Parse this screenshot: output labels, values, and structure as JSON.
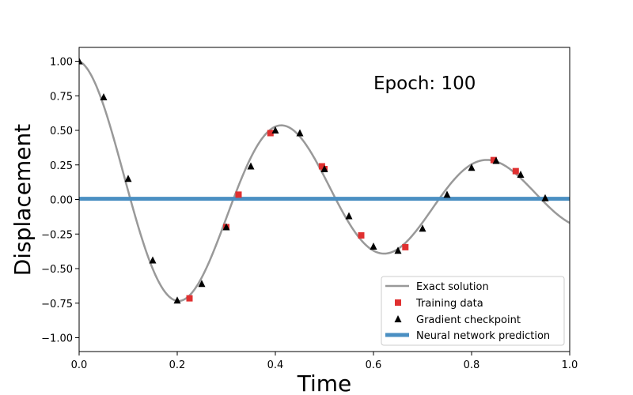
{
  "chart_data": {
    "type": "line",
    "title": "",
    "annotation": "Epoch: 100",
    "xlabel": "Time",
    "ylabel": "Displacement",
    "xlim": [
      0,
      1
    ],
    "ylim": [
      -1.1,
      1.1
    ],
    "xticks": [
      0.0,
      0.2,
      0.4,
      0.6,
      0.8,
      1.0
    ],
    "xtick_labels": [
      "0.0",
      "0.2",
      "0.4",
      "0.6",
      "0.8",
      "1.0"
    ],
    "yticks": [
      -1.0,
      -0.75,
      -0.5,
      -0.25,
      0.0,
      0.25,
      0.5,
      0.75,
      1.0
    ],
    "ytick_labels": [
      "−1.00",
      "−0.75",
      "−0.50",
      "−0.25",
      "0.00",
      "0.25",
      "0.50",
      "0.75",
      "1.00"
    ],
    "grid": false,
    "legend_position": "lower-right",
    "series": [
      {
        "name": "Exact solution",
        "kind": "line",
        "color": "#999999",
        "damping": 1.5,
        "omega": 15.0
      },
      {
        "name": "Training data",
        "kind": "scatter-square",
        "color": "#e03030",
        "x": [
          0.225,
          0.3,
          0.325,
          0.39,
          0.495,
          0.5,
          0.575,
          0.665,
          0.845,
          0.89
        ],
        "y": [
          -0.715,
          -0.2,
          0.035,
          0.48,
          0.24,
          0.22,
          -0.26,
          -0.345,
          0.285,
          0.205
        ]
      },
      {
        "name": "Gradient checkpoint",
        "kind": "scatter-triangle",
        "color": "#000000",
        "x": [
          0.0,
          0.05,
          0.1,
          0.15,
          0.2,
          0.25,
          0.3,
          0.35,
          0.4,
          0.45,
          0.5,
          0.55,
          0.6,
          0.65,
          0.7,
          0.75,
          0.8,
          0.85,
          0.9,
          0.95
        ],
        "y": [
          1.0,
          0.74,
          0.15,
          -0.44,
          -0.73,
          -0.61,
          -0.2,
          0.24,
          0.5,
          0.48,
          0.22,
          -0.12,
          -0.34,
          -0.37,
          -0.21,
          0.035,
          0.23,
          0.28,
          0.18,
          0.01
        ]
      },
      {
        "name": "Neural network prediction",
        "kind": "line",
        "color": "#4a8fc2",
        "x": [
          0.0,
          1.0
        ],
        "y": [
          0.005,
          0.005
        ]
      }
    ]
  }
}
